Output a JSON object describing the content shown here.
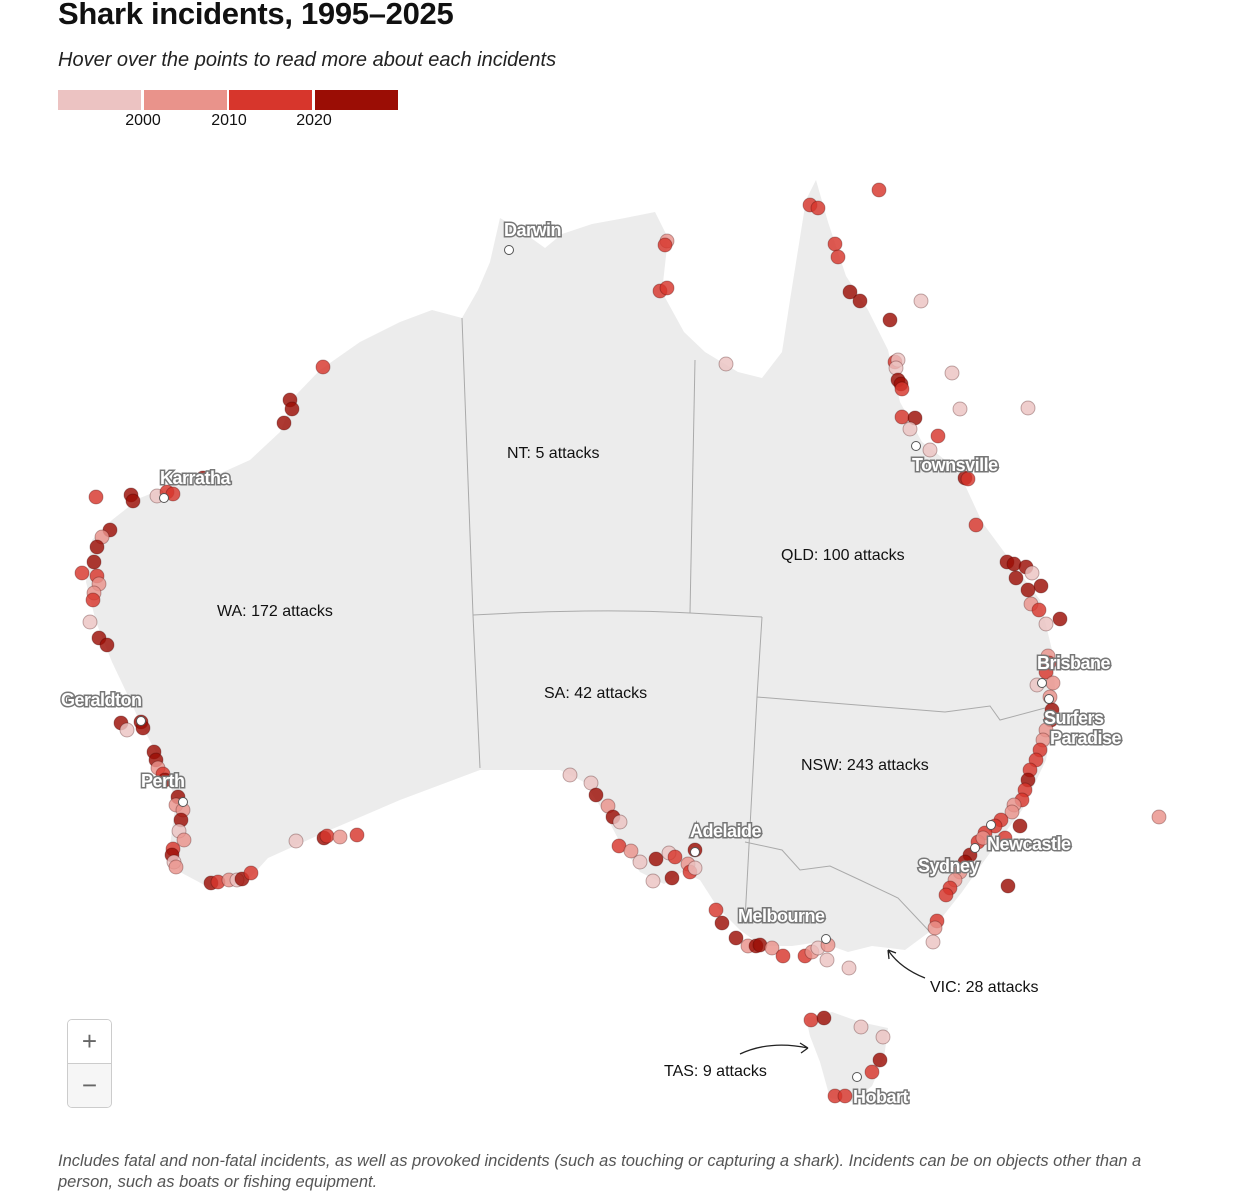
{
  "header": {
    "title": "Shark incidents, 1995–2025",
    "subtitle": "Hover over the points to read more about each incidents"
  },
  "legend": {
    "colors": [
      "#ecc3c2",
      "#e9938b",
      "#d7362c",
      "#9b0d05"
    ],
    "ticks": [
      "2000",
      "2010",
      "2020"
    ]
  },
  "map": {
    "land_color": "#ececec",
    "border_color": "#aaaaaa",
    "states": [
      {
        "id": "wa",
        "label": "WA: 172 attacks"
      },
      {
        "id": "nt",
        "label": "NT: 5 attacks"
      },
      {
        "id": "qld",
        "label": "QLD: 100 attacks"
      },
      {
        "id": "sa",
        "label": "SA: 42 attacks"
      },
      {
        "id": "nsw",
        "label": "NSW: 243 attacks"
      },
      {
        "id": "vic",
        "label": "VIC: 28 attacks"
      },
      {
        "id": "tas",
        "label": "TAS: 9 attacks"
      }
    ],
    "cities": [
      {
        "name": "Darwin",
        "lon": 128.36,
        "lat": -11.0
      },
      {
        "name": "Karratha",
        "lon": 114.56,
        "lat": -20.92
      },
      {
        "name": "Geraldton",
        "lon": 113.64,
        "lat": -29.84
      },
      {
        "name": "Perth",
        "lon": 115.32,
        "lat": -33.08
      },
      {
        "name": "Adelaide",
        "lon": 135.8,
        "lat": -35.08
      },
      {
        "name": "Melbourne",
        "lon": 141.04,
        "lat": -38.56
      },
      {
        "name": "Sydney",
        "lon": 147.0,
        "lat": -34.92
      },
      {
        "name": "Newcastle",
        "lon": 147.64,
        "lat": -34.0
      },
      {
        "name": "Brisbane",
        "lon": 149.68,
        "lat": -28.32
      },
      {
        "name": "Surfers Paradise",
        "lon": 149.96,
        "lat": -28.96
      },
      {
        "name": "Townsville",
        "lon": 144.64,
        "lat": -18.84
      },
      {
        "name": "Hobart",
        "lon": 142.28,
        "lat": -44.08
      }
    ],
    "incident_fields": [
      "lon",
      "lat",
      "period"
    ],
    "periods": [
      "before 2000",
      "2000–2010",
      "2010–2020",
      "2020–2025"
    ],
    "incidents": [
      [
        120.92,
        -15.68,
        2
      ],
      [
        119.6,
        -17,
        3
      ],
      [
        119.68,
        -17.36,
        3
      ],
      [
        119.36,
        -17.92,
        3
      ],
      [
        111.84,
        -20.88,
        2
      ],
      [
        113.24,
        -20.8,
        3
      ],
      [
        113.32,
        -21.04,
        3
      ],
      [
        114.28,
        -20.84,
        0
      ],
      [
        114.68,
        -20.68,
        2
      ],
      [
        114.92,
        -20.76,
        2
      ],
      [
        116.12,
        -20.12,
        3
      ],
      [
        112.4,
        -22.2,
        3
      ],
      [
        112.08,
        -22.48,
        1
      ],
      [
        111.88,
        -22.88,
        3
      ],
      [
        111.76,
        -23.48,
        3
      ],
      [
        111.28,
        -23.92,
        2
      ],
      [
        111.88,
        -24.04,
        2
      ],
      [
        111.96,
        -24.36,
        1
      ],
      [
        111.76,
        -24.72,
        1
      ],
      [
        111.72,
        -25,
        2
      ],
      [
        111.6,
        -25.88,
        0
      ],
      [
        111.96,
        -26.52,
        3
      ],
      [
        112.28,
        -26.8,
        3
      ],
      [
        112.84,
        -29.92,
        3
      ],
      [
        113.08,
        -30.2,
        0
      ],
      [
        113.64,
        -29.88,
        3
      ],
      [
        113.72,
        -30.12,
        3
      ],
      [
        114.16,
        -31.08,
        3
      ],
      [
        114.24,
        -31.4,
        3
      ],
      [
        114.32,
        -31.72,
        1
      ],
      [
        114.52,
        -31.96,
        2
      ],
      [
        114.6,
        -32.2,
        3
      ],
      [
        115.12,
        -32.88,
        3
      ],
      [
        115.04,
        -33.2,
        1
      ],
      [
        115.32,
        -33.4,
        1
      ],
      [
        115.24,
        -33.8,
        3
      ],
      [
        115.16,
        -34.24,
        0
      ],
      [
        115.36,
        -34.6,
        1
      ],
      [
        114.92,
        -34.96,
        2
      ],
      [
        114.88,
        -35.2,
        3
      ],
      [
        114.96,
        -35.48,
        0
      ],
      [
        115.04,
        -35.68,
        1
      ],
      [
        116.44,
        -36.32,
        3
      ],
      [
        116.72,
        -36.28,
        2
      ],
      [
        117.16,
        -36.2,
        1
      ],
      [
        117.48,
        -36.2,
        0
      ],
      [
        117.68,
        -36.16,
        3
      ],
      [
        118.04,
        -35.92,
        2
      ],
      [
        119.84,
        -34.64,
        0
      ],
      [
        120.96,
        -34.52,
        3
      ],
      [
        121.08,
        -34.44,
        2
      ],
      [
        121.6,
        -34.48,
        1
      ],
      [
        122.28,
        -34.4,
        2
      ],
      [
        134.68,
        -10.64,
        1
      ],
      [
        134.6,
        -10.8,
        2
      ],
      [
        134.4,
        -12.64,
        2
      ],
      [
        134.68,
        -12.52,
        2
      ],
      [
        137.04,
        -15.56,
        0
      ],
      [
        143.16,
        -8.6,
        2
      ],
      [
        140.4,
        -9.2,
        2
      ],
      [
        140.72,
        -9.32,
        2
      ],
      [
        141.4,
        -10.76,
        2
      ],
      [
        141.52,
        -11.28,
        2
      ],
      [
        142,
        -12.68,
        3
      ],
      [
        142.4,
        -13.04,
        3
      ],
      [
        143.6,
        -13.8,
        3
      ],
      [
        144.84,
        -13.04,
        0
      ],
      [
        143.8,
        -15.48,
        2
      ],
      [
        143.92,
        -15.4,
        0
      ],
      [
        143.84,
        -15.72,
        0
      ],
      [
        143.92,
        -16.2,
        3
      ],
      [
        144.04,
        -16.36,
        3
      ],
      [
        144.08,
        -16.56,
        2
      ],
      [
        146.08,
        -15.92,
        0
      ],
      [
        146.4,
        -17.36,
        0
      ],
      [
        149.12,
        -17.32,
        0
      ],
      [
        144.08,
        -17.68,
        2
      ],
      [
        144.6,
        -17.72,
        3
      ],
      [
        144.4,
        -18.16,
        0
      ],
      [
        145.52,
        -18.44,
        2
      ],
      [
        145.2,
        -19,
        0
      ],
      [
        146.6,
        -20.12,
        3
      ],
      [
        146.72,
        -20.16,
        2
      ],
      [
        147.04,
        -22,
        2
      ],
      [
        148.28,
        -23.48,
        3
      ],
      [
        148.56,
        -23.56,
        3
      ],
      [
        149.04,
        -23.68,
        3
      ],
      [
        149.28,
        -23.92,
        0
      ],
      [
        148.64,
        -24.12,
        3
      ],
      [
        149.64,
        -24.44,
        3
      ],
      [
        149.12,
        -24.6,
        3
      ],
      [
        149.24,
        -25.16,
        1
      ],
      [
        149.56,
        -25.4,
        2
      ],
      [
        150.4,
        -25.76,
        3
      ],
      [
        149.84,
        -25.96,
        0
      ],
      [
        149.92,
        -27.24,
        1
      ],
      [
        149.96,
        -27.52,
        2
      ],
      [
        149.84,
        -27.88,
        2
      ],
      [
        149.48,
        -28.4,
        0
      ],
      [
        150.12,
        -28.32,
        1
      ],
      [
        150,
        -28.88,
        1
      ],
      [
        150.08,
        -29.4,
        3
      ],
      [
        150.04,
        -29.8,
        3
      ],
      [
        149.84,
        -30.2,
        1
      ],
      [
        149.72,
        -30.6,
        1
      ],
      [
        149.6,
        -31,
        2
      ],
      [
        149.44,
        -31.4,
        2
      ],
      [
        149.2,
        -31.8,
        2
      ],
      [
        149.12,
        -32.2,
        3
      ],
      [
        149,
        -32.6,
        2
      ],
      [
        148.88,
        -33,
        2
      ],
      [
        148.56,
        -33.2,
        1
      ],
      [
        148.48,
        -33.48,
        1
      ],
      [
        148.04,
        -33.8,
        2
      ],
      [
        147.8,
        -34.04,
        2
      ],
      [
        148.8,
        -34.04,
        3
      ],
      [
        147.4,
        -34.32,
        2
      ],
      [
        147.12,
        -34.68,
        2
      ],
      [
        147.32,
        -34.52,
        1
      ],
      [
        148.2,
        -34.52,
        2
      ],
      [
        146.8,
        -35.2,
        3
      ],
      [
        146.6,
        -35.48,
        3
      ],
      [
        146.4,
        -35.88,
        1
      ],
      [
        146.2,
        -36.2,
        1
      ],
      [
        146,
        -36.52,
        2
      ],
      [
        145.84,
        -36.8,
        2
      ],
      [
        148.32,
        -36.44,
        3
      ],
      [
        145.48,
        -37.84,
        2
      ],
      [
        145.4,
        -38.12,
        1
      ],
      [
        145.32,
        -38.68,
        0
      ],
      [
        130.8,
        -32,
        0
      ],
      [
        131.64,
        -32.32,
        0
      ],
      [
        131.84,
        -32.8,
        3
      ],
      [
        132.32,
        -33.24,
        1
      ],
      [
        132.52,
        -33.68,
        3
      ],
      [
        132.8,
        -33.88,
        0
      ],
      [
        132.76,
        -34.84,
        2
      ],
      [
        133.24,
        -35.04,
        1
      ],
      [
        133.6,
        -35.48,
        0
      ],
      [
        134.24,
        -35.36,
        3
      ],
      [
        134.76,
        -35.12,
        0
      ],
      [
        135,
        -35.28,
        2
      ],
      [
        135.52,
        -35.56,
        1
      ],
      [
        135.6,
        -35.88,
        2
      ],
      [
        135.8,
        -35.72,
        0
      ],
      [
        134.12,
        -36.24,
        0
      ],
      [
        134.88,
        -36.12,
        3
      ],
      [
        135.8,
        -35,
        3
      ],
      [
        136.64,
        -37.4,
        2
      ],
      [
        136.88,
        -37.92,
        3
      ],
      [
        137.44,
        -38.52,
        3
      ],
      [
        137.92,
        -38.84,
        1
      ],
      [
        138.24,
        -38.84,
        3
      ],
      [
        138.4,
        -38.8,
        3
      ],
      [
        138.88,
        -38.92,
        1
      ],
      [
        139.32,
        -39.24,
        2
      ],
      [
        140.2,
        -39.24,
        2
      ],
      [
        140.48,
        -39.08,
        1
      ],
      [
        140.72,
        -38.92,
        0
      ],
      [
        141.12,
        -38.8,
        1
      ],
      [
        141.08,
        -39.4,
        0
      ],
      [
        141.96,
        -39.72,
        0
      ],
      [
        140.44,
        -41.8,
        2
      ],
      [
        140.96,
        -41.72,
        3
      ],
      [
        142.44,
        -42.08,
        0
      ],
      [
        143.32,
        -42.48,
        0
      ],
      [
        143.2,
        -43.4,
        3
      ],
      [
        142.88,
        -43.88,
        2
      ],
      [
        141.4,
        -44.84,
        2
      ],
      [
        141.8,
        -44.84,
        2
      ],
      [
        154.36,
        -33.68,
        1
      ]
    ]
  },
  "controls": {
    "zoom_in": "+",
    "zoom_out": "−"
  },
  "footnote": "Includes fatal and non-fatal incidents, as well as provoked incidents (such as touching or capturing a shark). Incidents can be on objects other than a person, such as boats or fishing equipment."
}
